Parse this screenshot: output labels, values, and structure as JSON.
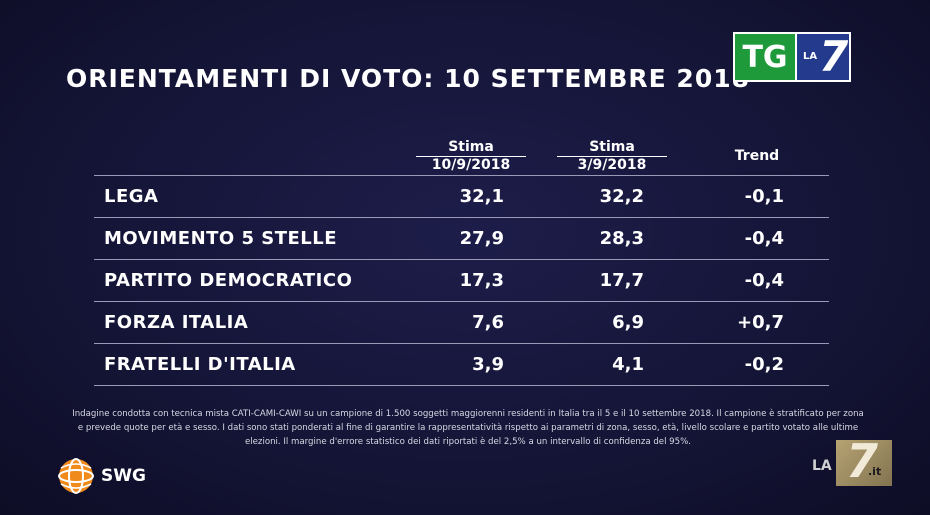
{
  "title": "ORIENTAMENTI DI VOTO: 10 SETTEMBRE 2018",
  "broadcaster": {
    "tg": "TG",
    "la": "LA",
    "seven": "7"
  },
  "columns": {
    "est1_line1": "Stima",
    "est1_line2": "10/9/2018",
    "est2_line1": "Stima",
    "est2_line2": "3/9/2018",
    "trend": "Trend"
  },
  "chart_data": {
    "type": "table",
    "title": "ORIENTAMENTI DI VOTO: 10 SETTEMBRE 2018",
    "headers": [
      "",
      "Stima 10/9/2018",
      "Stima 3/9/2018",
      "Trend"
    ],
    "rows": [
      {
        "party": "LEGA",
        "est_10_9": "32,1",
        "est_3_9": "32,2",
        "trend": "-0,1"
      },
      {
        "party": "MOVIMENTO 5 STELLE",
        "est_10_9": "27,9",
        "est_3_9": "28,3",
        "trend": "-0,4"
      },
      {
        "party": "PARTITO DEMOCRATICO",
        "est_10_9": "17,3",
        "est_3_9": "17,7",
        "trend": "-0,4"
      },
      {
        "party": "FORZA ITALIA",
        "est_10_9": "7,6",
        "est_3_9": "6,9",
        "trend": "+0,7"
      },
      {
        "party": "FRATELLI D'ITALIA",
        "est_10_9": "3,9",
        "est_3_9": "4,1",
        "trend": "-0,2"
      }
    ]
  },
  "note": "Indagine condotta con tecnica mista CATI-CAMI-CAWI su un campione di 1.500 soggetti maggiorenni residenti in Italia tra il 5 e il 10 settembre 2018. Il campione è stratificato per zona e prevede quote per età e sesso. I dati sono stati ponderati al fine di garantire la rappresentatività rispetto ai parametri di zona, sesso, età, livello scolare e partito votato alle ultime elezioni. Il margine d'errore statistico dei dati riportati è del 2,5% a un intervallo di confidenza del 95%.",
  "source_logo": "SWG",
  "watermark": {
    "la": "LA",
    "seven": "7",
    "it": ".it"
  },
  "colors": {
    "background": "#151538",
    "tg_green": "#1f9a3a",
    "tg_blue": "#243a8c",
    "swg_orange": "#f08a1c"
  }
}
